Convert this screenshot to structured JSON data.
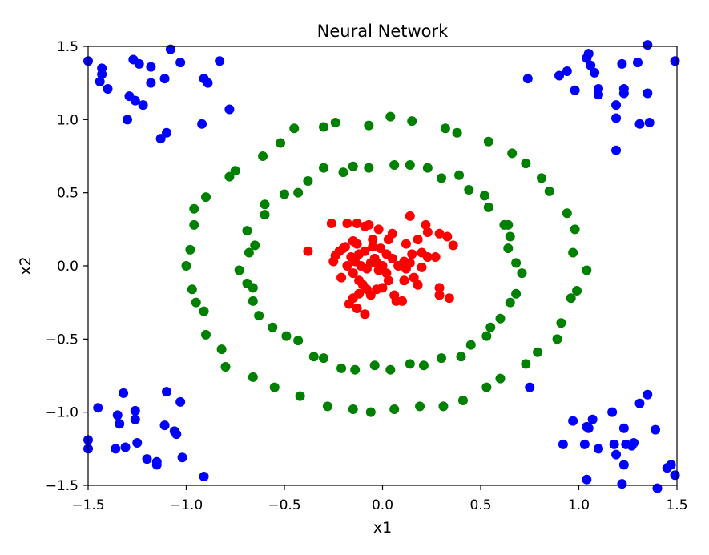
{
  "chart_data": {
    "type": "scatter",
    "title": "Neural Network",
    "xlabel": "x1",
    "ylabel": "x2",
    "xlim": [
      -1.5,
      1.5
    ],
    "ylim": [
      -1.5,
      1.5
    ],
    "xticks": [
      "−1.5",
      "−1.0",
      "−0.5",
      "0.0",
      "0.5",
      "1.0",
      "1.5"
    ],
    "yticks": [
      "−1.5",
      "−1.0",
      "−0.5",
      "0.0",
      "0.5",
      "1.0",
      "1.5"
    ],
    "grid": false,
    "series": [
      {
        "color": "#0000ff",
        "points": [
          [
            -1.5,
            1.4
          ],
          [
            -1.44,
            1.26
          ],
          [
            -1.43,
            1.35
          ],
          [
            -1.43,
            1.31
          ],
          [
            -1.4,
            1.21
          ],
          [
            -1.27,
            1.41
          ],
          [
            -1.24,
            1.38
          ],
          [
            -1.18,
            1.36
          ],
          [
            -1.18,
            1.25
          ],
          [
            -1.11,
            1.28
          ],
          [
            -1.08,
            1.48
          ],
          [
            -1.03,
            1.39
          ],
          [
            -0.91,
            1.28
          ],
          [
            -0.89,
            1.25
          ],
          [
            -0.83,
            1.4
          ],
          [
            -1.29,
            1.16
          ],
          [
            -1.26,
            1.13
          ],
          [
            -1.22,
            1.1
          ],
          [
            -1.3,
            1.0
          ],
          [
            -0.92,
            0.97
          ],
          [
            -0.78,
            1.07
          ],
          [
            -1.1,
            0.91
          ],
          [
            -1.13,
            0.87
          ],
          [
            1.04,
            1.42
          ],
          [
            1.05,
            1.45
          ],
          [
            1.06,
            1.37
          ],
          [
            1.08,
            1.32
          ],
          [
            0.94,
            1.33
          ],
          [
            0.9,
            1.3
          ],
          [
            1.22,
            1.38
          ],
          [
            1.3,
            1.39
          ],
          [
            1.35,
            1.51
          ],
          [
            1.49,
            1.4
          ],
          [
            1.1,
            1.21
          ],
          [
            1.1,
            1.17
          ],
          [
            1.23,
            1.21
          ],
          [
            1.23,
            1.18
          ],
          [
            0.74,
            1.28
          ],
          [
            0.98,
            1.2
          ],
          [
            1.35,
            1.18
          ],
          [
            1.19,
            1.1
          ],
          [
            1.19,
            1.01
          ],
          [
            1.31,
            0.97
          ],
          [
            1.36,
            0.98
          ],
          [
            1.19,
            0.79
          ],
          [
            -1.5,
            -1.19
          ],
          [
            -1.5,
            -1.25
          ],
          [
            -1.45,
            -0.97
          ],
          [
            -1.35,
            -1.02
          ],
          [
            -1.34,
            -1.08
          ],
          [
            -1.36,
            -1.25
          ],
          [
            -1.31,
            -1.24
          ],
          [
            -1.32,
            -0.87
          ],
          [
            -1.26,
            -0.99
          ],
          [
            -1.26,
            -1.05
          ],
          [
            -1.25,
            -1.21
          ],
          [
            -1.2,
            -1.32
          ],
          [
            -1.15,
            -1.34
          ],
          [
            -1.15,
            -1.36
          ],
          [
            -1.1,
            -0.86
          ],
          [
            -1.11,
            -1.09
          ],
          [
            -1.06,
            -1.13
          ],
          [
            -1.05,
            -1.15
          ],
          [
            -1.03,
            -0.93
          ],
          [
            -1.02,
            -1.31
          ],
          [
            -0.91,
            -1.44
          ],
          [
            0.97,
            -1.06
          ],
          [
            1.04,
            -1.1
          ],
          [
            1.07,
            -1.05
          ],
          [
            1.05,
            -1.11
          ],
          [
            0.92,
            -1.22
          ],
          [
            1.03,
            -1.22
          ],
          [
            1.1,
            -1.25
          ],
          [
            1.17,
            -1.0
          ],
          [
            1.18,
            -1.22
          ],
          [
            1.19,
            -1.29
          ],
          [
            1.23,
            -1.11
          ],
          [
            1.24,
            -1.22
          ],
          [
            1.27,
            -1.23
          ],
          [
            1.28,
            -1.21
          ],
          [
            1.23,
            -1.36
          ],
          [
            1.31,
            -0.94
          ],
          [
            1.35,
            -0.88
          ],
          [
            1.39,
            -1.12
          ],
          [
            1.45,
            -1.38
          ],
          [
            1.47,
            -1.36
          ],
          [
            1.49,
            -1.43
          ],
          [
            1.4,
            -1.52
          ],
          [
            1.22,
            -1.49
          ],
          [
            1.04,
            -1.46
          ],
          [
            0.75,
            -0.83
          ]
        ]
      },
      {
        "color": "#008000",
        "points": [
          [
            -0.45,
            0.94
          ],
          [
            -0.3,
            0.95
          ],
          [
            -0.24,
            0.98
          ],
          [
            -0.07,
            0.96
          ],
          [
            0.04,
            1.02
          ],
          [
            0.15,
            0.99
          ],
          [
            0.32,
            0.94
          ],
          [
            0.38,
            0.91
          ],
          [
            0.54,
            0.85
          ],
          [
            0.66,
            0.77
          ],
          [
            0.73,
            0.7
          ],
          [
            0.81,
            0.6
          ],
          [
            0.85,
            0.51
          ],
          [
            0.94,
            0.36
          ],
          [
            0.98,
            0.25
          ],
          [
            0.97,
            0.09
          ],
          [
            1.04,
            -0.03
          ],
          [
            0.99,
            -0.17
          ],
          [
            0.96,
            -0.22
          ],
          [
            0.91,
            -0.39
          ],
          [
            0.89,
            -0.5
          ],
          [
            0.79,
            -0.59
          ],
          [
            0.73,
            -0.67
          ],
          [
            0.6,
            -0.77
          ],
          [
            0.53,
            -0.83
          ],
          [
            0.41,
            -0.92
          ],
          [
            0.31,
            -0.96
          ],
          [
            0.19,
            -0.96
          ],
          [
            0.06,
            -0.98
          ],
          [
            -0.06,
            -1.0
          ],
          [
            -0.15,
            -0.98
          ],
          [
            -0.28,
            -0.96
          ],
          [
            -0.42,
            -0.89
          ],
          [
            -0.55,
            -0.83
          ],
          [
            -0.66,
            -0.76
          ],
          [
            -0.8,
            -0.69
          ],
          [
            -0.82,
            -0.57
          ],
          [
            -0.9,
            -0.47
          ],
          [
            -0.91,
            -0.31
          ],
          [
            -0.95,
            -0.25
          ],
          [
            -0.97,
            -0.16
          ],
          [
            -1.0,
            0.0
          ],
          [
            -0.98,
            0.11
          ],
          [
            -0.96,
            0.28
          ],
          [
            -0.96,
            0.39
          ],
          [
            -0.9,
            0.47
          ],
          [
            -0.78,
            0.61
          ],
          [
            -0.75,
            0.65
          ],
          [
            -0.61,
            0.75
          ],
          [
            -0.52,
            0.84
          ],
          [
            -0.3,
            0.67
          ],
          [
            -0.2,
            0.64
          ],
          [
            -0.15,
            0.68
          ],
          [
            -0.07,
            0.67
          ],
          [
            0.06,
            0.69
          ],
          [
            0.14,
            0.69
          ],
          [
            0.23,
            0.67
          ],
          [
            0.3,
            0.6
          ],
          [
            0.39,
            0.62
          ],
          [
            0.44,
            0.52
          ],
          [
            0.52,
            0.48
          ],
          [
            0.54,
            0.4
          ],
          [
            0.62,
            0.28
          ],
          [
            0.64,
            0.28
          ],
          [
            0.65,
            0.2
          ],
          [
            0.64,
            0.12
          ],
          [
            0.68,
            0.02
          ],
          [
            0.71,
            -0.05
          ],
          [
            0.68,
            -0.19
          ],
          [
            0.65,
            -0.25
          ],
          [
            0.6,
            -0.36
          ],
          [
            0.55,
            -0.42
          ],
          [
            0.53,
            -0.48
          ],
          [
            0.45,
            -0.54
          ],
          [
            0.4,
            -0.62
          ],
          [
            0.3,
            -0.63
          ],
          [
            0.21,
            -0.68
          ],
          [
            0.14,
            -0.67
          ],
          [
            0.04,
            -0.71
          ],
          [
            -0.04,
            -0.68
          ],
          [
            -0.14,
            -0.71
          ],
          [
            -0.21,
            -0.7
          ],
          [
            -0.3,
            -0.63
          ],
          [
            -0.35,
            -0.62
          ],
          [
            -0.43,
            -0.51
          ],
          [
            -0.49,
            -0.48
          ],
          [
            -0.56,
            -0.42
          ],
          [
            -0.63,
            -0.34
          ],
          [
            -0.66,
            -0.24
          ],
          [
            -0.66,
            -0.15
          ],
          [
            -0.69,
            -0.12
          ],
          [
            -0.73,
            -0.03
          ],
          [
            -0.68,
            0.09
          ],
          [
            -0.65,
            0.14
          ],
          [
            -0.69,
            0.24
          ],
          [
            -0.6,
            0.35
          ],
          [
            -0.6,
            0.42
          ],
          [
            -0.5,
            0.49
          ],
          [
            -0.43,
            0.5
          ],
          [
            -0.38,
            0.58
          ]
        ]
      },
      {
        "color": "#ff0000",
        "points": [
          [
            -0.38,
            0.1
          ],
          [
            -0.26,
            0.29
          ],
          [
            -0.18,
            0.29
          ],
          [
            -0.13,
            0.29
          ],
          [
            -0.09,
            0.27
          ],
          [
            -0.07,
            0.28
          ],
          [
            -0.02,
            0.25
          ],
          [
            0.05,
            0.22
          ],
          [
            0.14,
            0.34
          ],
          [
            0.22,
            0.28
          ],
          [
            0.23,
            0.23
          ],
          [
            0.29,
            0.22
          ],
          [
            0.33,
            0.2
          ],
          [
            0.36,
            0.14
          ],
          [
            0.18,
            0.18
          ],
          [
            0.12,
            0.15
          ],
          [
            0.03,
            0.18
          ],
          [
            -0.05,
            0.18
          ],
          [
            -0.13,
            0.15
          ],
          [
            -0.15,
            0.17
          ],
          [
            -0.19,
            0.13
          ],
          [
            -0.22,
            0.1
          ],
          [
            -0.24,
            0.07
          ],
          [
            -0.25,
            0.03
          ],
          [
            -0.18,
            0.0
          ],
          [
            -0.21,
            -0.08
          ],
          [
            -0.15,
            -0.05
          ],
          [
            -0.12,
            -0.1
          ],
          [
            -0.1,
            -0.13
          ],
          [
            -0.08,
            -0.16
          ],
          [
            -0.12,
            -0.19
          ],
          [
            -0.15,
            -0.22
          ],
          [
            -0.17,
            -0.26
          ],
          [
            -0.13,
            -0.29
          ],
          [
            -0.09,
            -0.33
          ],
          [
            -0.06,
            -0.2
          ],
          [
            -0.03,
            -0.16
          ],
          [
            0.0,
            -0.15
          ],
          [
            0.03,
            -0.1
          ],
          [
            0.06,
            -0.2
          ],
          [
            0.07,
            -0.24
          ],
          [
            0.1,
            -0.24
          ],
          [
            0.11,
            -0.1
          ],
          [
            0.16,
            -0.08
          ],
          [
            0.18,
            -0.13
          ],
          [
            0.2,
            -0.01
          ],
          [
            0.23,
            0.06
          ],
          [
            0.27,
            0.06
          ],
          [
            0.29,
            -0.15
          ],
          [
            0.29,
            -0.2
          ],
          [
            0.34,
            -0.22
          ],
          [
            0.2,
            0.09
          ],
          [
            0.15,
            0.08
          ],
          [
            0.11,
            0.03
          ],
          [
            0.08,
            0.0
          ],
          [
            0.05,
            0.05
          ],
          [
            0.02,
            0.08
          ],
          [
            -0.01,
            0.12
          ],
          [
            -0.04,
            0.05
          ],
          [
            -0.06,
            0.02
          ],
          [
            -0.08,
            -0.02
          ],
          [
            -0.11,
            0.0
          ],
          [
            -0.14,
            0.03
          ],
          [
            -0.16,
            0.06
          ],
          [
            -0.12,
            0.08
          ],
          [
            -0.09,
            0.1
          ],
          [
            -0.05,
            0.13
          ],
          [
            0.0,
            0.0
          ],
          [
            0.02,
            -0.05
          ],
          [
            -0.02,
            -0.03
          ],
          [
            0.12,
            -0.02
          ],
          [
            0.14,
            0.02
          ],
          [
            -0.2,
            0.12
          ],
          [
            -0.03,
            0.02
          ]
        ]
      }
    ]
  }
}
